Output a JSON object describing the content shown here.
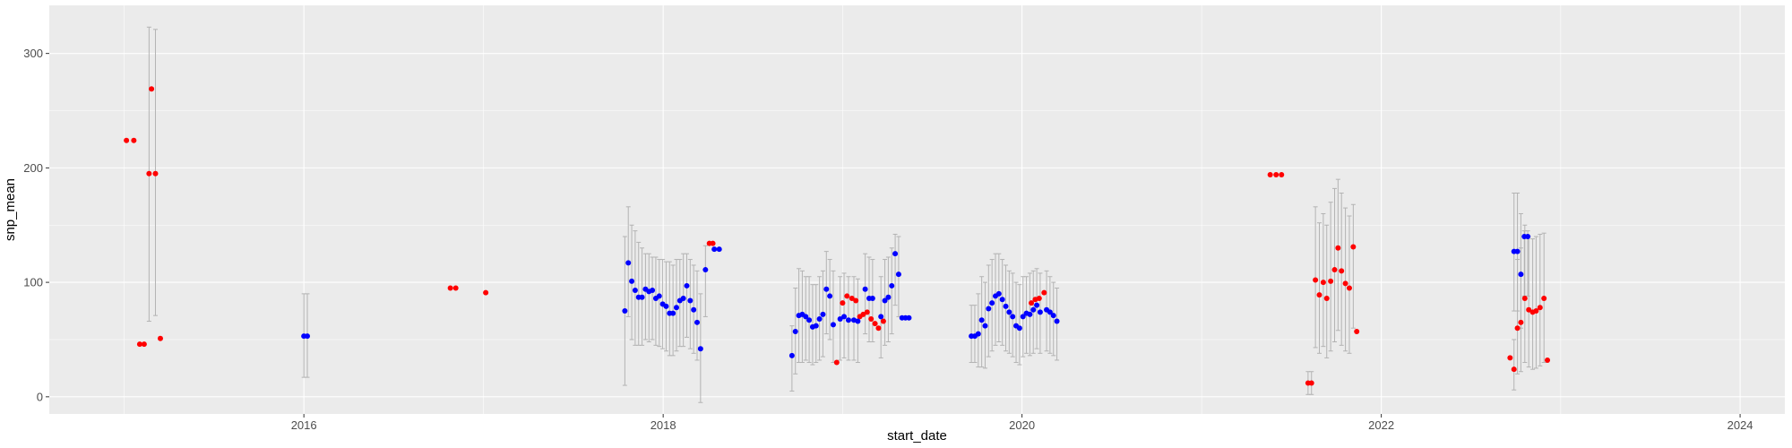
{
  "chart_data": {
    "type": "scatter",
    "xlabel": "start_date",
    "ylabel": "snp_mean",
    "xlim": [
      "2014-08-01",
      "2024-04-01"
    ],
    "ylim": [
      -15,
      342
    ],
    "x_ticks": [
      {
        "date": "2016-01-01",
        "label": "2016"
      },
      {
        "date": "2018-01-01",
        "label": "2018"
      },
      {
        "date": "2020-01-01",
        "label": "2020"
      },
      {
        "date": "2022-01-01",
        "label": "2022"
      },
      {
        "date": "2024-01-01",
        "label": "2024"
      }
    ],
    "y_ticks": [
      0,
      100,
      200,
      300
    ],
    "grid": true,
    "colors": {
      "panel": "#ebebeb",
      "grid": "#ffffff",
      "red": "#ff0000",
      "blue": "#0000ff",
      "errorbar": "#b3b3b3"
    },
    "series": [
      {
        "color": "red",
        "points": [
          {
            "x": "2015-01-05",
            "y": 224
          },
          {
            "x": "2015-01-20",
            "y": 224
          },
          {
            "x": "2015-02-01",
            "y": 46
          },
          {
            "x": "2015-02-10",
            "y": 46
          },
          {
            "x": "2015-02-20",
            "y": 195,
            "ymin": 66,
            "ymax": 323
          },
          {
            "x": "2015-02-25",
            "y": 269
          },
          {
            "x": "2015-03-05",
            "y": 195,
            "ymin": 71,
            "ymax": 321
          },
          {
            "x": "2015-03-15",
            "y": 51
          },
          {
            "x": "2016-10-25",
            "y": 95
          },
          {
            "x": "2016-11-05",
            "y": 95
          },
          {
            "x": "2017-01-05",
            "y": 91
          },
          {
            "x": "2018-04-05",
            "y": 134
          },
          {
            "x": "2018-04-12",
            "y": 134
          },
          {
            "x": "2018-12-20",
            "y": 30
          },
          {
            "x": "2019-01-01",
            "y": 82
          },
          {
            "x": "2019-01-10",
            "y": 88
          },
          {
            "x": "2019-01-20",
            "y": 86
          },
          {
            "x": "2019-01-28",
            "y": 84
          },
          {
            "x": "2019-02-05",
            "y": 70
          },
          {
            "x": "2019-02-12",
            "y": 72
          },
          {
            "x": "2019-02-20",
            "y": 74
          },
          {
            "x": "2019-02-28",
            "y": 68
          },
          {
            "x": "2019-03-08",
            "y": 64
          },
          {
            "x": "2019-03-15",
            "y": 60
          },
          {
            "x": "2019-03-25",
            "y": 66
          },
          {
            "x": "2020-01-20",
            "y": 82
          },
          {
            "x": "2020-01-28",
            "y": 85
          },
          {
            "x": "2020-02-05",
            "y": 86
          },
          {
            "x": "2020-02-15",
            "y": 91
          },
          {
            "x": "2021-05-20",
            "y": 194
          },
          {
            "x": "2021-06-01",
            "y": 194
          },
          {
            "x": "2021-06-12",
            "y": 194
          },
          {
            "x": "2021-08-05",
            "y": 12,
            "ymin": 2,
            "ymax": 22
          },
          {
            "x": "2021-08-12",
            "y": 12,
            "ymin": 2,
            "ymax": 22
          },
          {
            "x": "2021-08-20",
            "y": 102,
            "ymin": 43,
            "ymax": 166
          },
          {
            "x": "2021-08-28",
            "y": 89,
            "ymin": 38,
            "ymax": 152
          },
          {
            "x": "2021-09-05",
            "y": 100,
            "ymin": 44,
            "ymax": 160
          },
          {
            "x": "2021-09-12",
            "y": 86,
            "ymin": 34,
            "ymax": 150
          },
          {
            "x": "2021-09-20",
            "y": 101,
            "ymin": 40,
            "ymax": 170
          },
          {
            "x": "2021-09-28",
            "y": 111,
            "ymin": 48,
            "ymax": 182
          },
          {
            "x": "2021-10-05",
            "y": 130,
            "ymin": 58,
            "ymax": 190
          },
          {
            "x": "2021-10-12",
            "y": 110,
            "ymin": 45,
            "ymax": 178
          },
          {
            "x": "2021-10-20",
            "y": 99,
            "ymin": 40,
            "ymax": 165
          },
          {
            "x": "2021-10-28",
            "y": 95,
            "ymin": 38,
            "ymax": 158
          },
          {
            "x": "2021-11-05",
            "y": 131,
            "ymin": 60,
            "ymax": 168
          },
          {
            "x": "2021-11-12",
            "y": 57
          },
          {
            "x": "2022-09-20",
            "y": 34
          },
          {
            "x": "2022-09-28",
            "y": 24,
            "ymin": 6,
            "ymax": 50
          },
          {
            "x": "2022-10-05",
            "y": 60,
            "ymin": 20,
            "ymax": 120
          },
          {
            "x": "2022-10-12",
            "y": 65,
            "ymin": 22,
            "ymax": 130
          },
          {
            "x": "2022-10-20",
            "y": 86,
            "ymin": 30,
            "ymax": 150
          },
          {
            "x": "2022-10-28",
            "y": 76,
            "ymin": 26,
            "ymax": 140
          },
          {
            "x": "2022-11-05",
            "y": 74,
            "ymin": 24,
            "ymax": 138
          },
          {
            "x": "2022-11-12",
            "y": 75,
            "ymin": 25,
            "ymax": 140
          },
          {
            "x": "2022-11-20",
            "y": 78,
            "ymin": 27,
            "ymax": 142
          },
          {
            "x": "2022-11-28",
            "y": 86,
            "ymin": 30,
            "ymax": 143
          },
          {
            "x": "2022-12-05",
            "y": 32
          }
        ]
      },
      {
        "color": "blue",
        "points": [
          {
            "x": "2016-01-01",
            "y": 53,
            "ymin": 17,
            "ymax": 90
          },
          {
            "x": "2016-01-08",
            "y": 53,
            "ymin": 17,
            "ymax": 90
          },
          {
            "x": "2017-10-15",
            "y": 75,
            "ymin": 10,
            "ymax": 140
          },
          {
            "x": "2017-10-22",
            "y": 117,
            "ymin": 70,
            "ymax": 166
          },
          {
            "x": "2017-10-29",
            "y": 101,
            "ymin": 50,
            "ymax": 150
          },
          {
            "x": "2017-11-05",
            "y": 93,
            "ymin": 45,
            "ymax": 145
          },
          {
            "x": "2017-11-12",
            "y": 87,
            "ymin": 45,
            "ymax": 135
          },
          {
            "x": "2017-11-19",
            "y": 87,
            "ymin": 45,
            "ymax": 130
          },
          {
            "x": "2017-11-26",
            "y": 94,
            "ymin": 50,
            "ymax": 125
          },
          {
            "x": "2017-12-03",
            "y": 92,
            "ymin": 48,
            "ymax": 125
          },
          {
            "x": "2017-12-10",
            "y": 93,
            "ymin": 50,
            "ymax": 122
          },
          {
            "x": "2017-12-17",
            "y": 86,
            "ymin": 45,
            "ymax": 122
          },
          {
            "x": "2017-12-24",
            "y": 88,
            "ymin": 44,
            "ymax": 120
          },
          {
            "x": "2017-12-31",
            "y": 81,
            "ymin": 42,
            "ymax": 120
          },
          {
            "x": "2018-01-07",
            "y": 79,
            "ymin": 40,
            "ymax": 118
          },
          {
            "x": "2018-01-14",
            "y": 73,
            "ymin": 36,
            "ymax": 118
          },
          {
            "x": "2018-01-21",
            "y": 73,
            "ymin": 36,
            "ymax": 115
          },
          {
            "x": "2018-01-28",
            "y": 78,
            "ymin": 40,
            "ymax": 120
          },
          {
            "x": "2018-02-04",
            "y": 84,
            "ymin": 44,
            "ymax": 120
          },
          {
            "x": "2018-02-11",
            "y": 86,
            "ymin": 44,
            "ymax": 125
          },
          {
            "x": "2018-02-18",
            "y": 97,
            "ymin": 52,
            "ymax": 125
          },
          {
            "x": "2018-02-25",
            "y": 84,
            "ymin": 42,
            "ymax": 120
          },
          {
            "x": "2018-03-04",
            "y": 76,
            "ymin": 38,
            "ymax": 115
          },
          {
            "x": "2018-03-11",
            "y": 65,
            "ymin": 32,
            "ymax": 110
          },
          {
            "x": "2018-03-18",
            "y": 42,
            "ymin": -5,
            "ymax": 90
          },
          {
            "x": "2018-03-28",
            "y": 111,
            "ymin": 70,
            "ymax": 132
          },
          {
            "x": "2018-04-15",
            "y": 129
          },
          {
            "x": "2018-04-25",
            "y": 129
          },
          {
            "x": "2018-09-20",
            "y": 36,
            "ymin": 5,
            "ymax": 62
          },
          {
            "x": "2018-09-27",
            "y": 57,
            "ymin": 20,
            "ymax": 95
          },
          {
            "x": "2018-10-04",
            "y": 71,
            "ymin": 30,
            "ymax": 112
          },
          {
            "x": "2018-10-11",
            "y": 72,
            "ymin": 30,
            "ymax": 110
          },
          {
            "x": "2018-10-18",
            "y": 70,
            "ymin": 32,
            "ymax": 105
          },
          {
            "x": "2018-10-25",
            "y": 67,
            "ymin": 30,
            "ymax": 105
          },
          {
            "x": "2018-11-01",
            "y": 61,
            "ymin": 28,
            "ymax": 98
          },
          {
            "x": "2018-11-08",
            "y": 62,
            "ymin": 30,
            "ymax": 98
          },
          {
            "x": "2018-11-15",
            "y": 68,
            "ymin": 32,
            "ymax": 105
          },
          {
            "x": "2018-11-22",
            "y": 72,
            "ymin": 35,
            "ymax": 110
          },
          {
            "x": "2018-11-29",
            "y": 94,
            "ymin": 55,
            "ymax": 127
          },
          {
            "x": "2018-12-06",
            "y": 88,
            "ymin": 50,
            "ymax": 120
          },
          {
            "x": "2018-12-13",
            "y": 63,
            "ymin": 30,
            "ymax": 110
          },
          {
            "x": "2018-12-27",
            "y": 68,
            "ymin": 32,
            "ymax": 105
          },
          {
            "x": "2019-01-04",
            "y": 70,
            "ymin": 34,
            "ymax": 108
          },
          {
            "x": "2019-01-13",
            "y": 67,
            "ymin": 32,
            "ymax": 105
          },
          {
            "x": "2019-01-24",
            "y": 67,
            "ymin": 32,
            "ymax": 105
          },
          {
            "x": "2019-02-01",
            "y": 66,
            "ymin": 30,
            "ymax": 103
          },
          {
            "x": "2019-02-16",
            "y": 94,
            "ymin": 55,
            "ymax": 125
          },
          {
            "x": "2019-02-24",
            "y": 86,
            "ymin": 48,
            "ymax": 122
          },
          {
            "x": "2019-03-03",
            "y": 86,
            "ymin": 48,
            "ymax": 120
          },
          {
            "x": "2019-03-20",
            "y": 70,
            "ymin": 34,
            "ymax": 105
          },
          {
            "x": "2019-03-28",
            "y": 84,
            "ymin": 45,
            "ymax": 120
          },
          {
            "x": "2019-04-04",
            "y": 87,
            "ymin": 48,
            "ymax": 122
          },
          {
            "x": "2019-04-11",
            "y": 97,
            "ymin": 55,
            "ymax": 130
          },
          {
            "x": "2019-04-18",
            "y": 125,
            "ymin": 80,
            "ymax": 142
          },
          {
            "x": "2019-04-25",
            "y": 107,
            "ymin": 70,
            "ymax": 140
          },
          {
            "x": "2019-05-02",
            "y": 69
          },
          {
            "x": "2019-05-09",
            "y": 69
          },
          {
            "x": "2019-05-16",
            "y": 69
          },
          {
            "x": "2019-09-20",
            "y": 53,
            "ymin": 30,
            "ymax": 80
          },
          {
            "x": "2019-09-27",
            "y": 53,
            "ymin": 30,
            "ymax": 80
          },
          {
            "x": "2019-10-04",
            "y": 55,
            "ymin": 26,
            "ymax": 90
          },
          {
            "x": "2019-10-11",
            "y": 67,
            "ymin": 26,
            "ymax": 105
          },
          {
            "x": "2019-10-18",
            "y": 62,
            "ymin": 25,
            "ymax": 100
          },
          {
            "x": "2019-10-25",
            "y": 77,
            "ymin": 35,
            "ymax": 115
          },
          {
            "x": "2019-11-01",
            "y": 82,
            "ymin": 40,
            "ymax": 120
          },
          {
            "x": "2019-11-08",
            "y": 88,
            "ymin": 45,
            "ymax": 125
          },
          {
            "x": "2019-11-15",
            "y": 90,
            "ymin": 48,
            "ymax": 125
          },
          {
            "x": "2019-11-22",
            "y": 85,
            "ymin": 45,
            "ymax": 120
          },
          {
            "x": "2019-11-29",
            "y": 79,
            "ymin": 40,
            "ymax": 115
          },
          {
            "x": "2019-12-06",
            "y": 74,
            "ymin": 38,
            "ymax": 110
          },
          {
            "x": "2019-12-13",
            "y": 70,
            "ymin": 35,
            "ymax": 108
          },
          {
            "x": "2019-12-20",
            "y": 62,
            "ymin": 30,
            "ymax": 100
          },
          {
            "x": "2019-12-27",
            "y": 60,
            "ymin": 28,
            "ymax": 98
          },
          {
            "x": "2020-01-03",
            "y": 70,
            "ymin": 35,
            "ymax": 105
          },
          {
            "x": "2020-01-10",
            "y": 73,
            "ymin": 38,
            "ymax": 105
          },
          {
            "x": "2020-01-17",
            "y": 72,
            "ymin": 36,
            "ymax": 108
          },
          {
            "x": "2020-01-24",
            "y": 76,
            "ymin": 38,
            "ymax": 110
          },
          {
            "x": "2020-01-31",
            "y": 80,
            "ymin": 42,
            "ymax": 112
          },
          {
            "x": "2020-02-07",
            "y": 74,
            "ymin": 38,
            "ymax": 108
          },
          {
            "x": "2020-02-20",
            "y": 76,
            "ymin": 40,
            "ymax": 110
          },
          {
            "x": "2020-02-27",
            "y": 74,
            "ymin": 38,
            "ymax": 105
          },
          {
            "x": "2020-03-05",
            "y": 71,
            "ymin": 36,
            "ymax": 100
          },
          {
            "x": "2020-03-12",
            "y": 66,
            "ymin": 32,
            "ymax": 95
          },
          {
            "x": "2022-09-28",
            "y": 127,
            "ymin": 75,
            "ymax": 178
          },
          {
            "x": "2022-10-05",
            "y": 127,
            "ymin": 75,
            "ymax": 178
          },
          {
            "x": "2022-10-12",
            "y": 107,
            "ymin": 60,
            "ymax": 160
          },
          {
            "x": "2022-10-19",
            "y": 140,
            "ymin": 88,
            "ymax": 145
          },
          {
            "x": "2022-10-26",
            "y": 140,
            "ymin": 88,
            "ymax": 145
          }
        ]
      }
    ]
  }
}
